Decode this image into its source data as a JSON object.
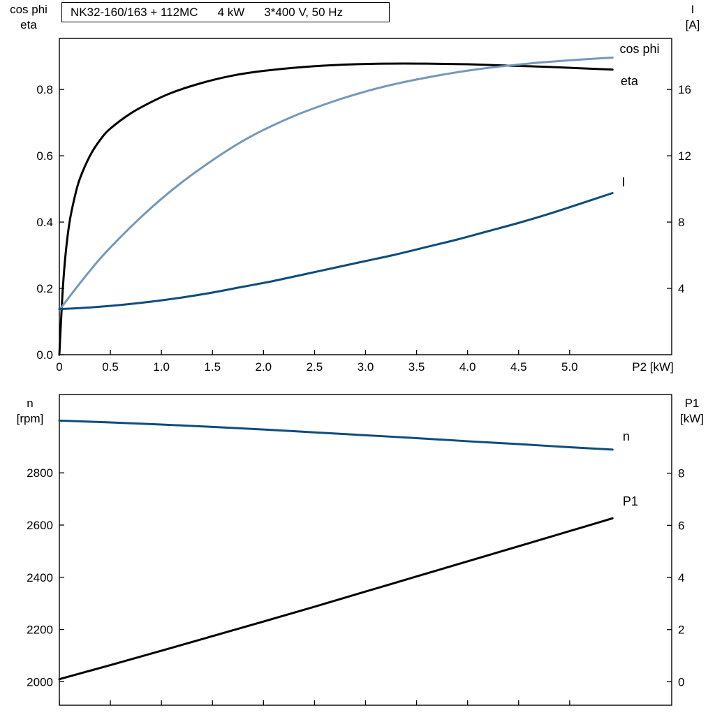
{
  "header": {
    "title_parts": [
      "NK32-160/163 + 112MC",
      "4 kW",
      "3*400 V, 50 Hz"
    ]
  },
  "axis_corner_labels": {
    "top_left": [
      "cos phi",
      "eta"
    ],
    "top_right": [
      "I",
      "[A]"
    ],
    "bottom_left": [
      "n",
      "[rpm]"
    ],
    "bottom_right": [
      "P1",
      "[kW]"
    ]
  },
  "colors": {
    "black": "#000000",
    "light_blue": "#7598ba",
    "dark_blue": "#0e4c7c"
  },
  "chart_data": [
    {
      "id": "top",
      "type": "line",
      "title": "NK32-160/163 + 112MC 4 kW 3*400 V, 50 Hz",
      "xlabel": "P2 [kW]",
      "grid": false,
      "legend": "curve-end labels",
      "xlim": [
        0,
        6.0
      ],
      "x_tick_values": [
        0,
        0.5,
        1.0,
        1.5,
        2.0,
        2.5,
        3.0,
        3.5,
        4.0,
        4.5,
        5.0
      ],
      "x_tick_labels": [
        "0",
        "0.5",
        "1.0",
        "1.5",
        "2.0",
        "2.5",
        "3.0",
        "3.5",
        "4.0",
        "4.5",
        "5.0"
      ],
      "axes": {
        "left": {
          "title": "cos phi / eta",
          "lim": [
            0,
            0.954
          ],
          "tick_values": [
            0.0,
            0.2,
            0.4,
            0.6,
            0.8
          ],
          "tick_labels": [
            "0.0",
            "0.2",
            "0.4",
            "0.6",
            "0.8"
          ]
        },
        "right": {
          "title": "I [A]",
          "lim": [
            0,
            19.08
          ],
          "tick_values": [
            4,
            8,
            12,
            16
          ],
          "tick_labels": [
            "4",
            "8",
            "12",
            "16"
          ]
        }
      },
      "series": [
        {
          "name": "eta",
          "axis": "left",
          "color": "#000000",
          "label": {
            "text": "eta",
            "x": 5.5,
            "y": 0.826
          },
          "points": [
            [
              0,
              0
            ],
            [
              0.03,
              0.18
            ],
            [
              0.06,
              0.3
            ],
            [
              0.1,
              0.4
            ],
            [
              0.15,
              0.475
            ],
            [
              0.2,
              0.53
            ],
            [
              0.3,
              0.6
            ],
            [
              0.4,
              0.648
            ],
            [
              0.5,
              0.682
            ],
            [
              0.7,
              0.728
            ],
            [
              0.9,
              0.762
            ],
            [
              1.1,
              0.79
            ],
            [
              1.4,
              0.82
            ],
            [
              1.7,
              0.842
            ],
            [
              2.0,
              0.856
            ],
            [
              2.4,
              0.868
            ],
            [
              2.8,
              0.875
            ],
            [
              3.2,
              0.878
            ],
            [
              3.6,
              0.878
            ],
            [
              4.0,
              0.876
            ],
            [
              4.4,
              0.872
            ],
            [
              4.8,
              0.868
            ],
            [
              5.1,
              0.864
            ],
            [
              5.42,
              0.86
            ]
          ]
        },
        {
          "name": "cos phi",
          "axis": "left",
          "color": "#7598ba",
          "label": {
            "text": "cos phi",
            "x": 5.49,
            "y": 0.922
          },
          "points": [
            [
              0,
              0.135
            ],
            [
              0.2,
              0.215
            ],
            [
              0.4,
              0.29
            ],
            [
              0.6,
              0.355
            ],
            [
              0.8,
              0.415
            ],
            [
              1.0,
              0.47
            ],
            [
              1.2,
              0.52
            ],
            [
              1.4,
              0.565
            ],
            [
              1.6,
              0.607
            ],
            [
              1.8,
              0.645
            ],
            [
              2.0,
              0.678
            ],
            [
              2.3,
              0.72
            ],
            [
              2.6,
              0.755
            ],
            [
              2.9,
              0.785
            ],
            [
              3.2,
              0.81
            ],
            [
              3.5,
              0.83
            ],
            [
              3.8,
              0.847
            ],
            [
              4.1,
              0.861
            ],
            [
              4.4,
              0.872
            ],
            [
              4.7,
              0.881
            ],
            [
              5.0,
              0.888
            ],
            [
              5.2,
              0.892
            ],
            [
              5.42,
              0.896
            ]
          ]
        },
        {
          "name": "I",
          "axis": "right",
          "color": "#0e4c7c",
          "label": {
            "text": "I",
            "x": 5.51,
            "y": 10.4
          },
          "points": [
            [
              0,
              2.75
            ],
            [
              0.3,
              2.85
            ],
            [
              0.6,
              3.0
            ],
            [
              0.9,
              3.2
            ],
            [
              1.2,
              3.45
            ],
            [
              1.5,
              3.75
            ],
            [
              1.8,
              4.1
            ],
            [
              2.1,
              4.45
            ],
            [
              2.4,
              4.85
            ],
            [
              2.7,
              5.25
            ],
            [
              3.0,
              5.65
            ],
            [
              3.3,
              6.05
            ],
            [
              3.6,
              6.5
            ],
            [
              3.9,
              6.95
            ],
            [
              4.2,
              7.45
            ],
            [
              4.5,
              7.95
            ],
            [
              4.8,
              8.5
            ],
            [
              5.1,
              9.1
            ],
            [
              5.42,
              9.75
            ]
          ]
        }
      ]
    },
    {
      "id": "bottom",
      "type": "line",
      "title": "",
      "xlabel": "",
      "grid": false,
      "legend": "curve-end labels",
      "xlim": [
        0,
        6.0
      ],
      "x_tick_values": [
        0,
        0.5,
        1.0,
        1.5,
        2.0,
        2.5,
        3.0,
        3.5,
        4.0,
        4.5,
        5.0
      ],
      "x_tick_labels": [],
      "axes": {
        "left": {
          "title": "n [rpm]",
          "lim": [
            1910,
            3100
          ],
          "tick_values": [
            2000,
            2200,
            2400,
            2600,
            2800
          ],
          "tick_labels": [
            "2000",
            "2200",
            "2400",
            "2600",
            "2800"
          ]
        },
        "right": {
          "title": "P1 [kW]",
          "lim": [
            -0.9,
            11.02
          ],
          "tick_values": [
            0,
            2,
            4,
            6,
            8
          ],
          "tick_labels": [
            "0",
            "2",
            "4",
            "6",
            "8"
          ]
        }
      },
      "series": [
        {
          "name": "n",
          "axis": "left",
          "color": "#0e4c7c",
          "label": {
            "text": "n",
            "x": 5.52,
            "y": 2940
          },
          "points": [
            [
              0,
              3000
            ],
            [
              0.5,
              2993
            ],
            [
              1.0,
              2985
            ],
            [
              1.5,
              2976
            ],
            [
              2.0,
              2966
            ],
            [
              2.5,
              2955
            ],
            [
              3.0,
              2944
            ],
            [
              3.5,
              2933
            ],
            [
              4.0,
              2921
            ],
            [
              4.5,
              2910
            ],
            [
              5.0,
              2898
            ],
            [
              5.42,
              2889
            ]
          ]
        },
        {
          "name": "P1",
          "axis": "right",
          "color": "#000000",
          "label": {
            "text": "P1",
            "x": 5.52,
            "y": 6.92
          },
          "points": [
            [
              0,
              0.1
            ],
            [
              0.5,
              0.64
            ],
            [
              1.0,
              1.19
            ],
            [
              1.5,
              1.75
            ],
            [
              2.0,
              2.31
            ],
            [
              2.5,
              2.88
            ],
            [
              3.0,
              3.46
            ],
            [
              3.5,
              4.04
            ],
            [
              4.0,
              4.62
            ],
            [
              4.5,
              5.2
            ],
            [
              5.0,
              5.78
            ],
            [
              5.42,
              6.27
            ]
          ]
        }
      ]
    }
  ]
}
